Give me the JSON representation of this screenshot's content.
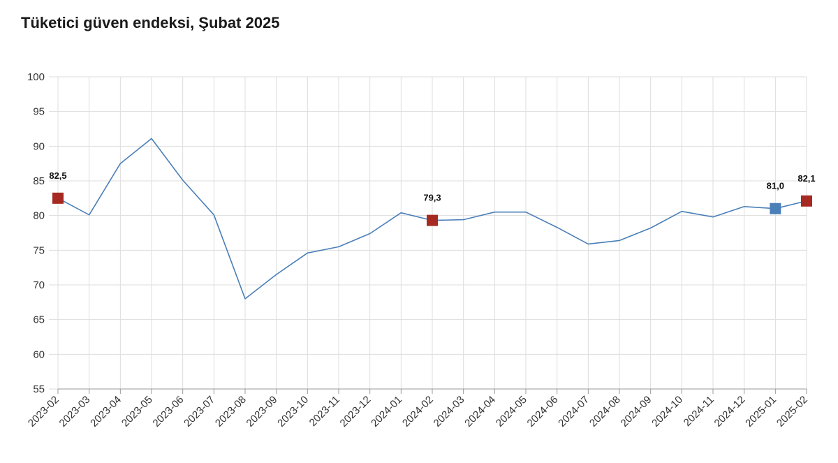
{
  "title": "Tüketici güven endeksi, Şubat 2025",
  "colors": {
    "line": "#4a7fb8",
    "marker_red": "#a72a22",
    "marker_blue": "#4a7fb8",
    "grid": "#dddddd"
  },
  "chart_data": {
    "type": "line",
    "title": "Tüketici güven endeksi, Şubat 2025",
    "xlabel": "",
    "ylabel": "",
    "ylim": [
      55,
      100
    ],
    "yticks": [
      55,
      60,
      65,
      70,
      75,
      80,
      85,
      90,
      95,
      100
    ],
    "grid": true,
    "categories": [
      "2023-02",
      "2023-03",
      "2023-04",
      "2023-05",
      "2023-06",
      "2023-07",
      "2023-08",
      "2023-09",
      "2023-10",
      "2023-11",
      "2023-12",
      "2024-01",
      "2024-02",
      "2024-03",
      "2024-04",
      "2024-05",
      "2024-06",
      "2024-07",
      "2024-08",
      "2024-09",
      "2024-10",
      "2024-11",
      "2024-12",
      "2025-01",
      "2025-02"
    ],
    "series": [
      {
        "values": [
          82.5,
          80.1,
          87.5,
          91.1,
          85.1,
          80.1,
          68.0,
          71.5,
          74.6,
          75.5,
          77.4,
          80.4,
          79.3,
          79.4,
          80.5,
          80.5,
          78.3,
          75.9,
          76.4,
          78.2,
          80.6,
          79.8,
          81.3,
          81.0,
          82.1
        ]
      }
    ],
    "highlights": [
      {
        "category": "2023-02",
        "value": 82.5,
        "label": "82,5",
        "color": "#a72a22"
      },
      {
        "category": "2024-02",
        "value": 79.3,
        "label": "79,3",
        "color": "#a72a22"
      },
      {
        "category": "2025-01",
        "value": 81.0,
        "label": "81,0",
        "color": "#4a7fb8"
      },
      {
        "category": "2025-02",
        "value": 82.1,
        "label": "82,1",
        "color": "#a72a22"
      }
    ]
  }
}
